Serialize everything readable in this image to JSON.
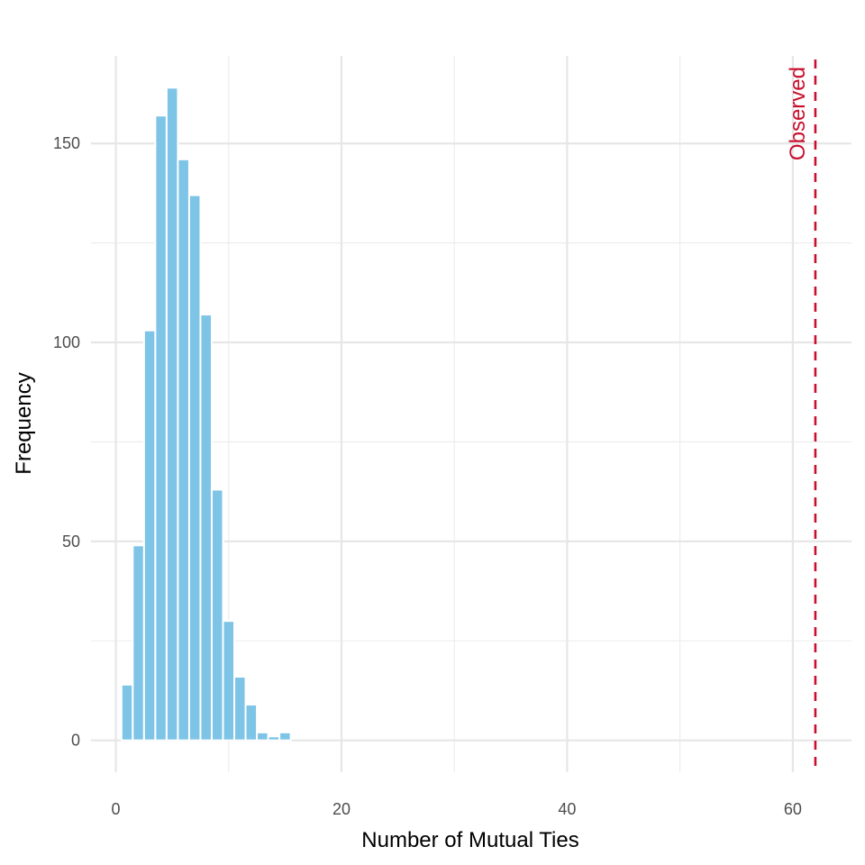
{
  "chart_data": {
    "type": "bar",
    "title": "",
    "xlabel": "Number of Mutual Ties",
    "ylabel": "Frequency",
    "xlim": [
      -2.2,
      65.2
    ],
    "ylim": [
      -8,
      172
    ],
    "x_major_ticks": [
      0,
      20,
      40,
      60
    ],
    "x_minor_ticks": [
      10,
      30,
      50
    ],
    "y_major_ticks": [
      0,
      50,
      100,
      150
    ],
    "y_minor_ticks": [
      25,
      75,
      125
    ],
    "x_tick_labels": [
      "0",
      "20",
      "40",
      "60"
    ],
    "y_tick_labels": [
      "0",
      "50",
      "100",
      "150"
    ],
    "grid": true,
    "bar_color": "#7DC4E6",
    "bar_outline": "#FFFFFF",
    "bins": [
      1,
      2,
      3,
      4,
      5,
      6,
      7,
      8,
      9,
      10,
      11,
      12,
      13,
      14,
      15
    ],
    "values": [
      14,
      49,
      103,
      157,
      164,
      146,
      137,
      107,
      63,
      30,
      16,
      9,
      2,
      1,
      2
    ],
    "observed": {
      "x": 62,
      "label": "Observed",
      "color": "#C8102E",
      "linestyle": "dashed"
    }
  }
}
